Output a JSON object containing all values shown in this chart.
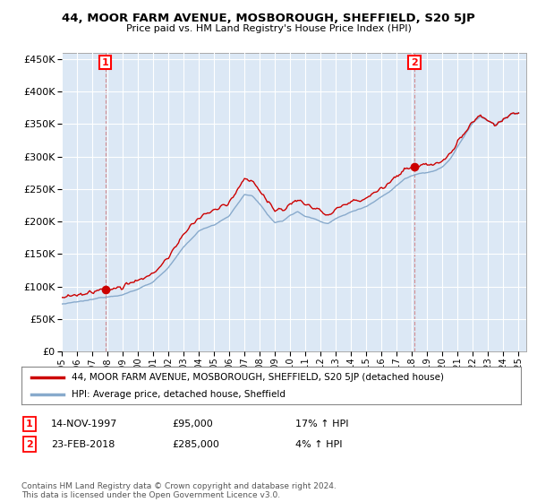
{
  "title": "44, MOOR FARM AVENUE, MOSBOROUGH, SHEFFIELD, S20 5JP",
  "subtitle": "Price paid vs. HM Land Registry's House Price Index (HPI)",
  "ylim": [
    0,
    460000
  ],
  "yticks": [
    0,
    50000,
    100000,
    150000,
    200000,
    250000,
    300000,
    350000,
    400000,
    450000
  ],
  "sale1_date": 1997.87,
  "sale1_price": 95000,
  "sale2_date": 2018.15,
  "sale2_price": 285000,
  "legend_line1": "44, MOOR FARM AVENUE, MOSBOROUGH, SHEFFIELD, S20 5JP (detached house)",
  "legend_line2": "HPI: Average price, detached house, Sheffield",
  "line_color_red": "#cc0000",
  "line_color_blue": "#88aacc",
  "chart_bg": "#dce8f5",
  "background_color": "#ffffff",
  "grid_color": "#ffffff"
}
